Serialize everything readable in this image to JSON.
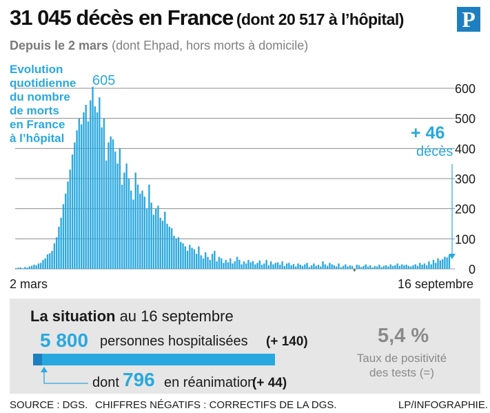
{
  "header": {
    "title_main": "31 045 décès  en France",
    "title_paren": "(dont 20 517 à l’hôpital)",
    "subtitle_bold": "Depuis le 2 mars",
    "subtitle_rest": " (dont Ehpad, hors morts à domicile)",
    "logo": "P"
  },
  "chart_data": {
    "type": "bar",
    "title": "Evolution quotidienne du nombre de morts en France à l’hôpital",
    "annotation_lines": [
      "Evolution",
      "quotidienne",
      "du nombre",
      "de morts",
      "en France",
      "à l’hôpital"
    ],
    "x_start_label": "2 mars",
    "x_end_label": "16 septembre",
    "y_ticks": [
      0,
      100,
      200,
      300,
      400,
      500,
      600
    ],
    "ylim": [
      0,
      630
    ],
    "grid": true,
    "peak_label": "605",
    "last_value_label": "+ 46",
    "last_value_unit": "décès",
    "values": [
      3,
      4,
      5,
      2,
      6,
      4,
      8,
      10,
      14,
      12,
      18,
      20,
      30,
      35,
      48,
      52,
      60,
      85,
      105,
      140,
      170,
      215,
      250,
      290,
      330,
      380,
      420,
      460,
      500,
      480,
      520,
      545,
      490,
      560,
      605,
      540,
      520,
      570,
      470,
      500,
      360,
      420,
      440,
      430,
      390,
      350,
      400,
      280,
      320,
      350,
      300,
      260,
      230,
      320,
      280,
      250,
      260,
      240,
      200,
      280,
      220,
      180,
      200,
      210,
      170,
      160,
      190,
      150,
      140,
      135,
      110,
      100,
      105,
      90,
      85,
      75,
      60,
      80,
      70,
      65,
      50,
      75,
      45,
      35,
      55,
      40,
      30,
      50,
      60,
      25,
      40,
      35,
      20,
      30,
      22,
      35,
      18,
      25,
      40,
      30,
      15,
      25,
      18,
      30,
      22,
      26,
      15,
      20,
      28,
      14,
      18,
      30,
      12,
      25,
      15,
      20,
      22,
      14,
      25,
      10,
      18,
      20,
      12,
      16,
      8,
      18,
      14,
      10,
      15,
      20,
      6,
      12,
      18,
      10,
      14,
      8,
      25,
      15,
      10,
      20,
      15,
      12,
      8,
      18,
      5,
      10,
      15,
      8,
      12,
      10,
      -8,
      14,
      12,
      6,
      10,
      15,
      8,
      12,
      5,
      10,
      8,
      14,
      6,
      10,
      12,
      8,
      15,
      10,
      12,
      18,
      10,
      15,
      12,
      14,
      10,
      8,
      12,
      15,
      10,
      20,
      14,
      18,
      12,
      25,
      15,
      30,
      20,
      35,
      28,
      32,
      40,
      38,
      46
    ]
  },
  "situation": {
    "title_bold": "La situation",
    "title_rest": " au 16 septembre",
    "hosp_value": "5 800",
    "hosp_text": "personnes hospitalisées",
    "hosp_delta": "(+ 140)",
    "hosp_count": 5800,
    "rea_prefix": "dont",
    "rea_value": "796",
    "rea_text": "en réanimation",
    "rea_delta": "(+ 44)",
    "rea_count": 796,
    "positivity_value": "5,4 %",
    "positivity_label_line1": "Taux de positivité",
    "positivity_label_line2": "des tests (=)"
  },
  "footer": {
    "source": "SOURCE : DGS.",
    "note": "CHIFFRES NÉGATIFS : CORRECTIFS DE LA DGS.",
    "credit": "LP/INFOGRAPHIE."
  },
  "colors": {
    "bar": "#29a8df",
    "accent_dark": "#1d7fbf",
    "gridline": "#8c8c8c",
    "panel": "#e6e6e6"
  }
}
